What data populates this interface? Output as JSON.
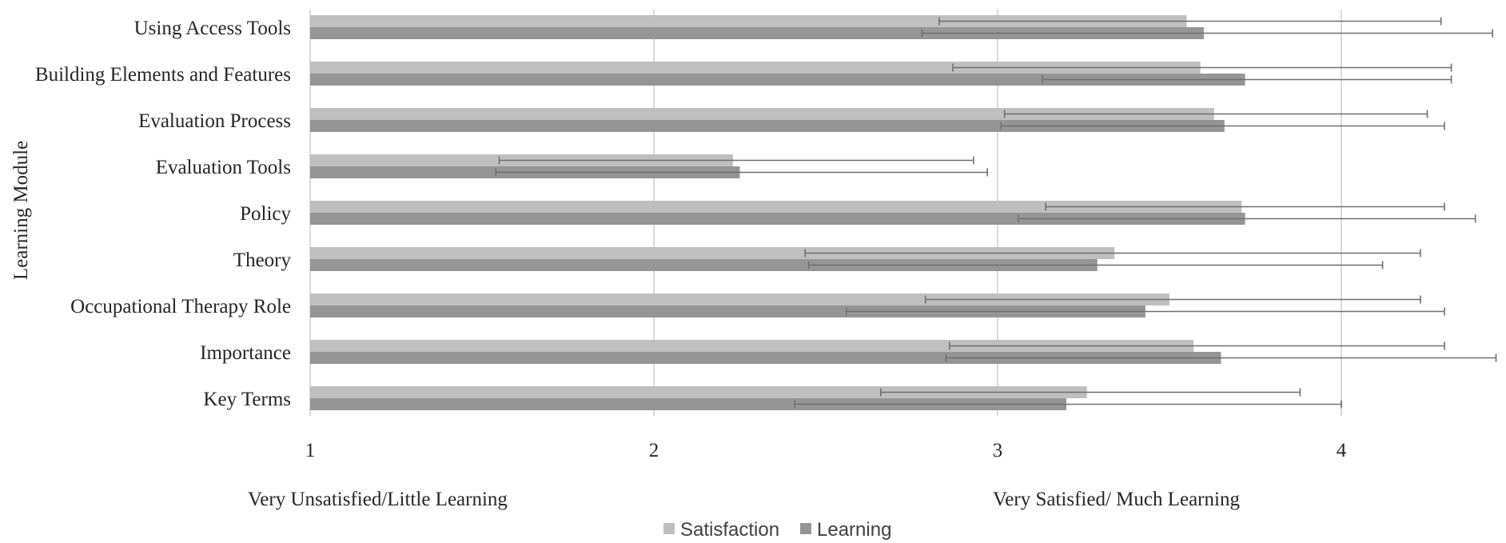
{
  "chart_data": {
    "type": "bar",
    "orientation": "horizontal",
    "title": "",
    "ylabel": "Learning Module",
    "xlabel": "",
    "xlim": [
      1,
      4.45
    ],
    "xticks": [
      1,
      2,
      3,
      4
    ],
    "grid": true,
    "legend_position": "bottom",
    "anchor_labels": {
      "low": "Very Unsatisfied/Little Learning",
      "high": "Very Satisfied/ Much Learning"
    },
    "categories": [
      "Using Access Tools",
      "Building Elements and Features",
      "Evaluation Process",
      "Evaluation Tools",
      "Policy",
      "Theory",
      "Occupational Therapy Role",
      "Importance",
      "Key Terms"
    ],
    "series": [
      {
        "name": "Satisfaction",
        "color": "#bfbfbf",
        "values": [
          3.55,
          3.59,
          3.63,
          2.23,
          3.71,
          3.34,
          3.5,
          3.57,
          3.26
        ],
        "error_low": [
          2.83,
          2.87,
          3.02,
          1.55,
          3.14,
          2.44,
          2.79,
          2.86,
          2.66
        ],
        "error_high": [
          4.29,
          4.32,
          4.25,
          2.93,
          4.3,
          4.23,
          4.23,
          4.3,
          3.88
        ]
      },
      {
        "name": "Learning",
        "color": "#959595",
        "values": [
          3.6,
          3.72,
          3.66,
          2.25,
          3.72,
          3.29,
          3.43,
          3.65,
          3.2
        ],
        "error_low": [
          2.78,
          3.13,
          3.01,
          1.54,
          3.06,
          2.45,
          2.56,
          2.85,
          2.41
        ],
        "error_high": [
          4.44,
          4.32,
          4.3,
          2.97,
          4.39,
          4.12,
          4.3,
          4.45,
          4.0
        ]
      }
    ]
  }
}
